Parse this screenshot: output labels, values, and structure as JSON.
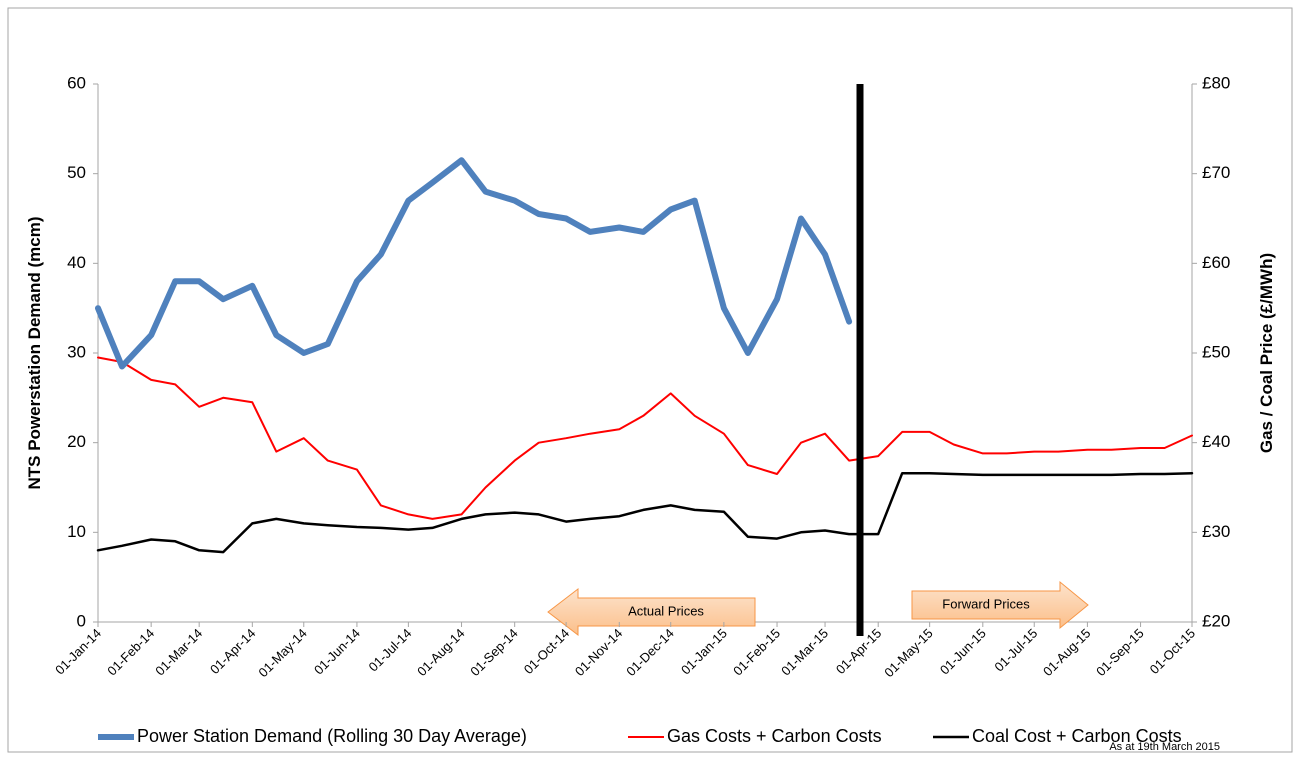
{
  "chart_data": {
    "type": "line",
    "y_label": "NTS Powerstation Demand (mcm)",
    "y2_label": "Gas / Coal Price (£/MWh)",
    "annotations": [
      "Actual Prices",
      "Forward Prices"
    ],
    "note": "As at 19th March 2015",
    "x": [
      "2014-01-01",
      "2014-01-15",
      "2014-02-01",
      "2014-02-15",
      "2014-03-01",
      "2014-03-15",
      "2014-04-01",
      "2014-04-15",
      "2014-05-01",
      "2014-05-15",
      "2014-06-01",
      "2014-06-15",
      "2014-07-01",
      "2014-07-15",
      "2014-08-01",
      "2014-08-15",
      "2014-09-01",
      "2014-09-15",
      "2014-10-01",
      "2014-10-15",
      "2014-11-01",
      "2014-11-15",
      "2014-12-01",
      "2014-12-15",
      "2015-01-01",
      "2015-01-15",
      "2015-02-01",
      "2015-02-15",
      "2015-03-01",
      "2015-03-15",
      "2015-04-01",
      "2015-04-15",
      "2015-05-01",
      "2015-05-15",
      "2015-06-01",
      "2015-06-15",
      "2015-07-01",
      "2015-07-15",
      "2015-08-01",
      "2015-08-15",
      "2015-09-01",
      "2015-09-15",
      "2015-10-01"
    ],
    "xlim": [
      "2014-01-01",
      "2015-10-01"
    ],
    "xticks": [
      {
        "value": "2014-01-01",
        "label": "01-Jan-14"
      },
      {
        "value": "2014-02-01",
        "label": "01-Feb-14"
      },
      {
        "value": "2014-03-01",
        "label": "01-Mar-14"
      },
      {
        "value": "2014-04-01",
        "label": "01-Apr-14"
      },
      {
        "value": "2014-05-01",
        "label": "01-May-14"
      },
      {
        "value": "2014-06-01",
        "label": "01-Jun-14"
      },
      {
        "value": "2014-07-01",
        "label": "01-Jul-14"
      },
      {
        "value": "2014-08-01",
        "label": "01-Aug-14"
      },
      {
        "value": "2014-09-01",
        "label": "01-Sep-14"
      },
      {
        "value": "2014-10-01",
        "label": "01-Oct-14"
      },
      {
        "value": "2014-11-01",
        "label": "01-Nov-14"
      },
      {
        "value": "2014-12-01",
        "label": "01-Dec-14"
      },
      {
        "value": "2015-01-01",
        "label": "01-Jan-15"
      },
      {
        "value": "2015-02-01",
        "label": "01-Feb-15"
      },
      {
        "value": "2015-03-01",
        "label": "01-Mar-15"
      },
      {
        "value": "2015-04-01",
        "label": "01-Apr-15"
      },
      {
        "value": "2015-05-01",
        "label": "01-May-15"
      },
      {
        "value": "2015-06-01",
        "label": "01-Jun-15"
      },
      {
        "value": "2015-07-01",
        "label": "01-Jul-15"
      },
      {
        "value": "2015-08-01",
        "label": "01-Aug-15"
      },
      {
        "value": "2015-09-01",
        "label": "01-Sep-15"
      },
      {
        "value": "2015-10-01",
        "label": "01-Oct-15"
      }
    ],
    "ylim": [
      0,
      60
    ],
    "yticks": [
      0,
      10,
      20,
      30,
      40,
      50,
      60
    ],
    "y2lim": [
      20,
      80
    ],
    "y2ticks": [
      {
        "value": 20,
        "label": "£20"
      },
      {
        "value": 30,
        "label": "£30"
      },
      {
        "value": 40,
        "label": "£40"
      },
      {
        "value": 50,
        "label": "£50"
      },
      {
        "value": 60,
        "label": "£60"
      },
      {
        "value": 70,
        "label": "£70"
      },
      {
        "value": 80,
        "label": "£80"
      }
    ],
    "grid": false,
    "legend": "bottom",
    "series": [
      {
        "name": "Power Station Demand (Rolling 30 Day Average)",
        "color": "#4f81bd",
        "width": 6,
        "values": [
          35,
          28.5,
          32,
          38,
          38,
          36,
          37.5,
          32,
          30,
          31,
          38,
          41,
          47,
          49,
          51.5,
          48,
          47,
          45.5,
          45,
          43.5,
          44,
          43.5,
          46,
          47,
          35,
          30,
          36,
          45,
          41,
          33.5,
          null,
          null,
          null,
          null,
          null,
          null,
          null,
          null,
          null,
          null,
          null,
          null,
          null
        ]
      },
      {
        "name": "Gas Costs + Carbon Costs",
        "color": "#ff0000",
        "width": 2,
        "axis": "y2",
        "values": [
          49.5,
          49,
          47,
          46.5,
          44,
          45,
          44.5,
          39,
          40.5,
          38,
          37,
          33,
          32,
          31.5,
          32,
          35,
          38,
          40,
          40.5,
          41,
          41.5,
          43,
          45.5,
          43,
          41,
          37.5,
          36.5,
          40,
          41,
          38,
          38.5,
          41.2,
          41.2,
          39.8,
          38.8,
          38.8,
          39,
          39,
          39.2,
          39.2,
          39.4,
          39.4,
          40.8
        ]
      },
      {
        "name": "Coal Cost + Carbon Costs",
        "color": "#000000",
        "width": 2.5,
        "axis": "y2",
        "values": [
          28,
          28.5,
          29.2,
          29,
          28,
          27.8,
          31,
          31.5,
          31,
          30.8,
          30.6,
          30.5,
          30.3,
          30.5,
          31.5,
          32,
          32.2,
          32,
          31.2,
          31.5,
          31.8,
          32.5,
          33,
          32.5,
          32.3,
          29.5,
          29.3,
          30,
          30.2,
          29.8,
          29.8,
          36.6,
          36.6,
          36.5,
          36.4,
          36.4,
          36.4,
          36.4,
          36.4,
          36.4,
          36.5,
          36.5,
          36.6
        ]
      }
    ]
  }
}
